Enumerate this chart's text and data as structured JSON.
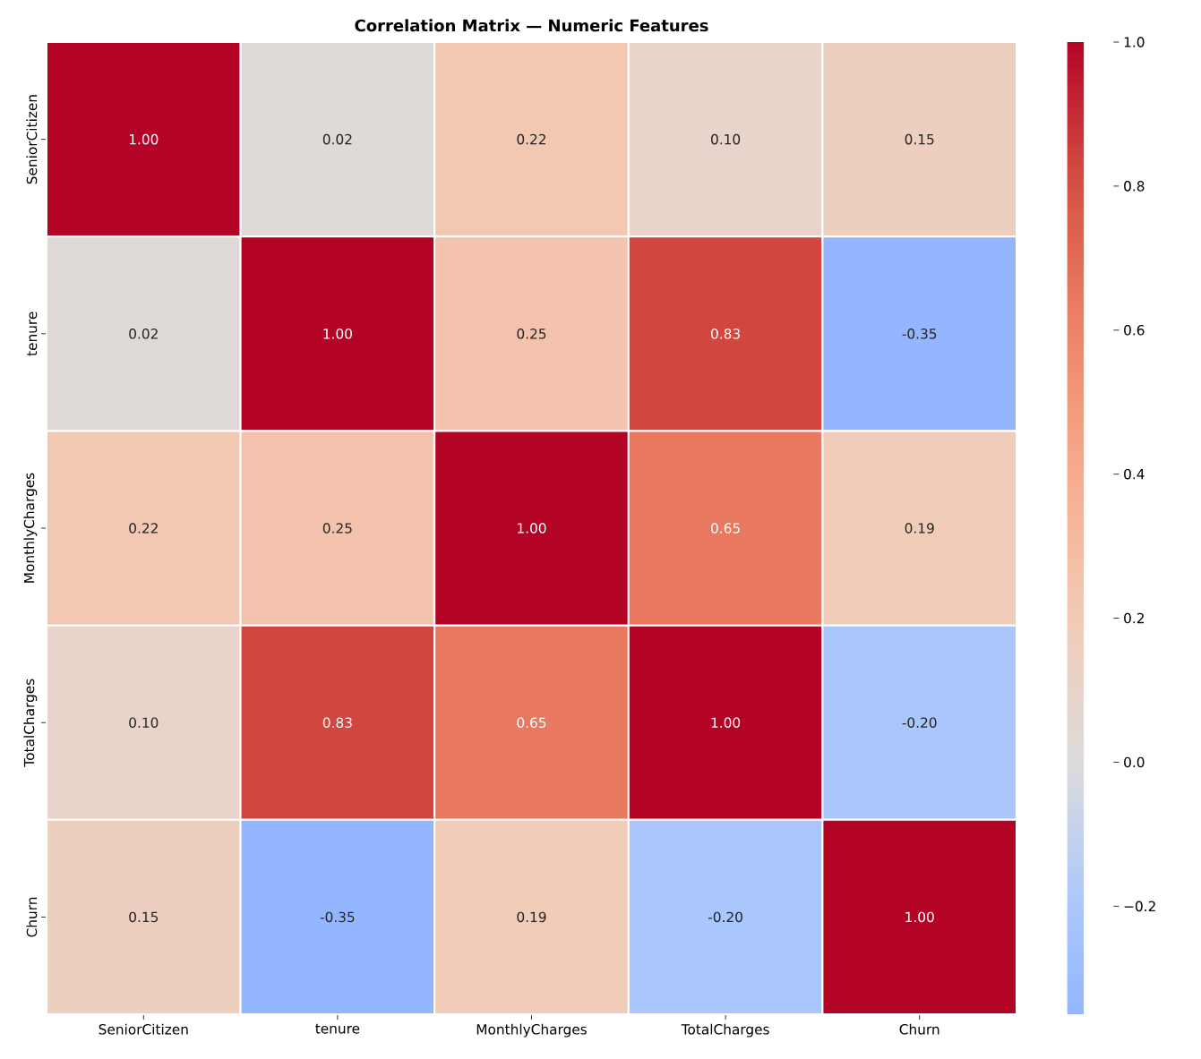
{
  "chart_data": {
    "type": "heatmap",
    "title": "Correlation Matrix — Numeric Features",
    "categories": [
      "SeniorCitizen",
      "tenure",
      "MonthlyCharges",
      "TotalCharges",
      "Churn"
    ],
    "y_categories": [
      "SeniorCitizen",
      "tenure",
      "MonthlyCharges",
      "TotalCharges",
      "Churn"
    ],
    "cells": [
      [
        1.0,
        0.02,
        0.22,
        0.1,
        0.15
      ],
      [
        0.02,
        1.0,
        0.25,
        0.83,
        -0.35
      ],
      [
        0.22,
        0.25,
        1.0,
        0.65,
        0.19
      ],
      [
        0.1,
        0.83,
        0.65,
        1.0,
        -0.2
      ],
      [
        0.15,
        -0.35,
        0.19,
        -0.2,
        1.0
      ]
    ],
    "cell_labels": [
      [
        "1.00",
        "0.02",
        "0.22",
        "0.10",
        "0.15"
      ],
      [
        "0.02",
        "1.00",
        "0.25",
        "0.83",
        "-0.35"
      ],
      [
        "0.22",
        "0.25",
        "1.00",
        "0.65",
        "0.19"
      ],
      [
        "0.10",
        "0.83",
        "0.65",
        "1.00",
        "-0.20"
      ],
      [
        "0.15",
        "-0.35",
        "0.19",
        "-0.20",
        "1.00"
      ]
    ],
    "clim": [
      -0.35,
      1.0
    ],
    "cticks": [
      {
        "value": -0.2,
        "label": "−0.2"
      },
      {
        "value": 0.0,
        "label": "0.0"
      },
      {
        "value": 0.2,
        "label": "0.2"
      },
      {
        "value": 0.4,
        "label": "0.4"
      },
      {
        "value": 0.6,
        "label": "0.6"
      },
      {
        "value": 0.8,
        "label": "0.8"
      },
      {
        "value": 1.0,
        "label": "1.0"
      }
    ]
  }
}
